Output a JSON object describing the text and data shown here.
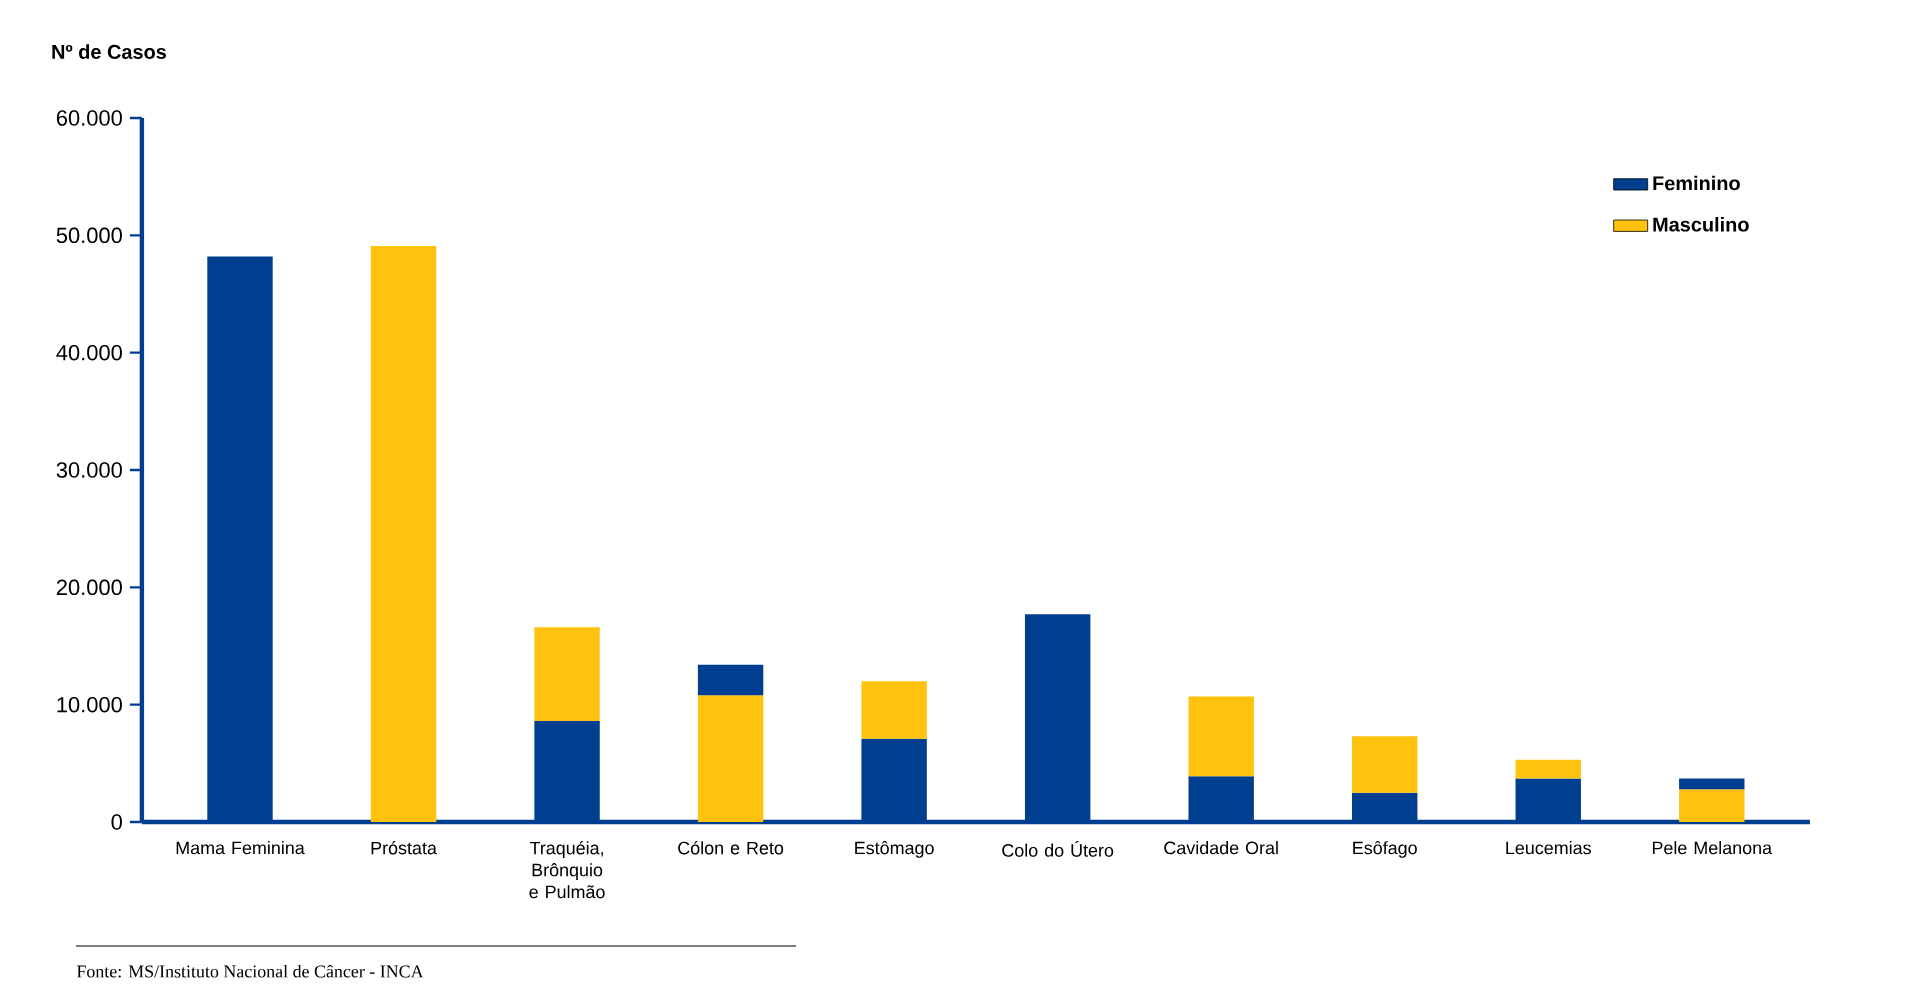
{
  "chart_data": {
    "type": "bar",
    "stacked": true,
    "ylabel": "Nº de Casos",
    "categories": [
      "Mama Feminina",
      "Próstata",
      "Traquéia, Brônquio e Pulmão",
      "Cólon e Reto",
      "Estômago",
      "Colo do Útero",
      "Cavidade Oral",
      "Esôfago",
      "Leucemias",
      "Pele Melanona"
    ],
    "series": [
      {
        "name": "Feminino",
        "color": "#003f8f",
        "values": [
          48200,
          null,
          8600,
          null,
          7100,
          17700,
          3900,
          2500,
          3700,
          null
        ]
      },
      {
        "name": "Masculino",
        "color": "#ffc20e",
        "values": [
          null,
          49100,
          8000,
          10800,
          4900,
          null,
          6800,
          4800,
          1600,
          2800
        ]
      },
      {
        "color": "#003f8f",
        "values": [
          null,
          null,
          null,
          2600,
          null,
          null,
          null,
          null,
          null,
          900
        ]
      }
    ],
    "ylim": [
      0,
      60000
    ],
    "yticks": [
      {
        "value": 0,
        "label": "0"
      },
      {
        "value": 10000,
        "label": "10.000"
      },
      {
        "value": 20000,
        "label": "20.000"
      },
      {
        "value": 30000,
        "label": "30.000"
      },
      {
        "value": 40000,
        "label": "40.000"
      },
      {
        "value": 50000,
        "label": "50.000"
      },
      {
        "value": 60000,
        "label": "60.000"
      }
    ],
    "legend": "top right",
    "annotations": [
      "Fonte: MS/Instituto Nacional de Câncer - INCA"
    ]
  }
}
